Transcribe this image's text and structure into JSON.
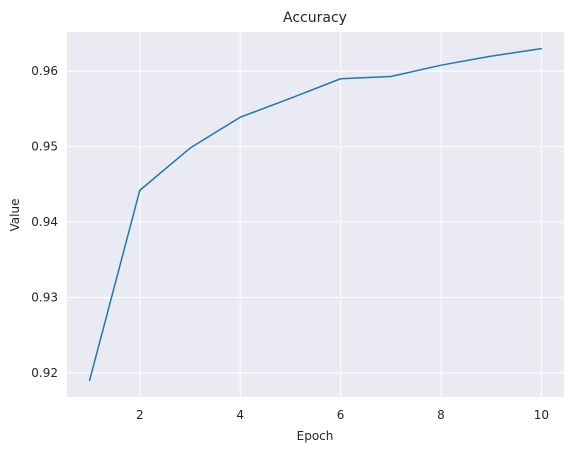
{
  "chart_data": {
    "type": "line",
    "title": "Accuracy",
    "xlabel": "Epoch",
    "ylabel": "Value",
    "x": [
      1,
      2,
      3,
      4,
      5,
      6,
      7,
      8,
      9,
      10
    ],
    "series": [
      {
        "values": [
          0.919,
          0.9442,
          0.9498,
          0.9539,
          0.9564,
          0.959,
          0.9593,
          0.9608,
          0.962,
          0.963
        ],
        "color": "#1f77b4"
      }
    ],
    "xlim": [
      0.55,
      10.45
    ],
    "ylim": [
      0.9168,
      0.9652
    ],
    "xticks": [
      2,
      4,
      6,
      8,
      10
    ],
    "xtick_labels": [
      "2",
      "4",
      "6",
      "8",
      "10"
    ],
    "yticks": [
      0.92,
      0.93,
      0.94,
      0.95,
      0.96
    ],
    "ytick_labels": [
      "0.92",
      "0.93",
      "0.94",
      "0.95",
      "0.96"
    ],
    "grid": true,
    "background_color": "#eaeaf2",
    "grid_color": "#ffffff"
  }
}
